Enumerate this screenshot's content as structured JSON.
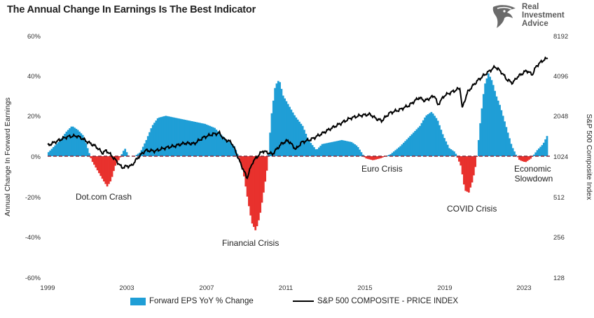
{
  "title": "The Annual Change In Earnings Is The Best Indicator",
  "logo": {
    "lines": [
      "Real",
      "Investment",
      "Advice"
    ],
    "icon": "eagle-head-icon"
  },
  "colors": {
    "bars_positive": "#1f9ed6",
    "bars_negative": "#e8312d",
    "line": "#000000",
    "zero_line": "#8a2a3a"
  },
  "chart_data": {
    "type": "bar",
    "title": "The Annual Change In Earnings Is The Best Indicator",
    "xlabel": "",
    "ylabel": "Annual Change In Forward Earnings",
    "y2label": "S&P 500 Composite Index",
    "xlim": [
      1999,
      2024.8
    ],
    "ylim": [
      -60,
      60
    ],
    "y2scale": "log2",
    "y2lim": [
      128,
      8192
    ],
    "x_ticks": [
      "1999",
      "2003",
      "2007",
      "2011",
      "2015",
      "2019",
      "2023"
    ],
    "y_ticks": [
      "60%",
      "40%",
      "20%",
      "0%",
      "-20%",
      "-40%",
      "-60%"
    ],
    "y2_ticks": [
      "8192",
      "4096",
      "2048",
      "1024",
      "512",
      "256",
      "128"
    ],
    "grid": false,
    "legend_position": "bottom",
    "annotations": [
      "Dot.com Crash",
      "Financial Crisis",
      "Euro Crisis",
      "COVID Crisis",
      "Economic Slowdown"
    ],
    "series": [
      {
        "name": "Forward EPS YoY % Change",
        "kind": "bar",
        "points": [
          [
            1999.0,
            2
          ],
          [
            1999.3,
            5
          ],
          [
            1999.6,
            8
          ],
          [
            1999.9,
            12
          ],
          [
            2000.2,
            15
          ],
          [
            2000.5,
            13
          ],
          [
            2000.8,
            10
          ],
          [
            2001.0,
            4
          ],
          [
            2001.2,
            -2
          ],
          [
            2001.5,
            -7
          ],
          [
            2001.8,
            -12
          ],
          [
            2002.0,
            -15
          ],
          [
            2002.2,
            -12
          ],
          [
            2002.4,
            -5
          ],
          [
            2002.7,
            0
          ],
          [
            2002.9,
            4
          ],
          [
            2003.1,
            0
          ],
          [
            2003.4,
            0
          ],
          [
            2003.7,
            2
          ],
          [
            2004.0,
            8
          ],
          [
            2004.3,
            15
          ],
          [
            2004.6,
            19
          ],
          [
            2005.0,
            20
          ],
          [
            2005.5,
            19
          ],
          [
            2006.0,
            18
          ],
          [
            2006.5,
            17
          ],
          [
            2007.0,
            16
          ],
          [
            2007.5,
            14
          ],
          [
            2008.0,
            9
          ],
          [
            2008.5,
            5
          ],
          [
            2008.8,
            -2
          ],
          [
            2009.0,
            -10
          ],
          [
            2009.2,
            -22
          ],
          [
            2009.4,
            -33
          ],
          [
            2009.6,
            -37
          ],
          [
            2009.8,
            -30
          ],
          [
            2010.0,
            -18
          ],
          [
            2010.2,
            -5
          ],
          [
            2010.4,
            20
          ],
          [
            2010.6,
            35
          ],
          [
            2010.8,
            38
          ],
          [
            2011.0,
            30
          ],
          [
            2011.3,
            25
          ],
          [
            2011.6,
            20
          ],
          [
            2012.0,
            15
          ],
          [
            2012.3,
            8
          ],
          [
            2012.7,
            3
          ],
          [
            2013.0,
            6
          ],
          [
            2013.5,
            7
          ],
          [
            2014.0,
            8
          ],
          [
            2014.5,
            7
          ],
          [
            2014.8,
            5
          ],
          [
            2015.2,
            -1
          ],
          [
            2015.6,
            -2
          ],
          [
            2016.0,
            -1
          ],
          [
            2016.5,
            1
          ],
          [
            2017.0,
            5
          ],
          [
            2017.5,
            10
          ],
          [
            2018.0,
            15
          ],
          [
            2018.3,
            20
          ],
          [
            2018.6,
            22
          ],
          [
            2018.9,
            18
          ],
          [
            2019.2,
            10
          ],
          [
            2019.5,
            4
          ],
          [
            2019.8,
            2
          ],
          [
            2020.1,
            -5
          ],
          [
            2020.3,
            -17
          ],
          [
            2020.5,
            -18
          ],
          [
            2020.7,
            -12
          ],
          [
            2020.9,
            -2
          ],
          [
            2021.1,
            18
          ],
          [
            2021.3,
            35
          ],
          [
            2021.5,
            41
          ],
          [
            2021.7,
            37
          ],
          [
            2021.9,
            30
          ],
          [
            2022.1,
            25
          ],
          [
            2022.4,
            15
          ],
          [
            2022.7,
            5
          ],
          [
            2022.9,
            1
          ],
          [
            2023.1,
            -2
          ],
          [
            2023.4,
            -3
          ],
          [
            2023.7,
            -1
          ],
          [
            2024.0,
            3
          ],
          [
            2024.3,
            6
          ],
          [
            2024.5,
            10
          ]
        ]
      },
      {
        "name": "S&P 500 COMPOSITE - PRICE INDEX",
        "kind": "line",
        "axis": "right",
        "points": [
          [
            1999.0,
            1230
          ],
          [
            1999.5,
            1330
          ],
          [
            2000.0,
            1430
          ],
          [
            2000.5,
            1450
          ],
          [
            2000.8,
            1380
          ],
          [
            2001.0,
            1320
          ],
          [
            2001.5,
            1200
          ],
          [
            2001.8,
            1080
          ],
          [
            2002.0,
            1130
          ],
          [
            2002.5,
            950
          ],
          [
            2002.8,
            840
          ],
          [
            2003.0,
            860
          ],
          [
            2003.3,
            870
          ],
          [
            2003.6,
            990
          ],
          [
            2004.0,
            1130
          ],
          [
            2004.5,
            1120
          ],
          [
            2005.0,
            1180
          ],
          [
            2005.5,
            1220
          ],
          [
            2006.0,
            1280
          ],
          [
            2006.5,
            1270
          ],
          [
            2007.0,
            1420
          ],
          [
            2007.5,
            1500
          ],
          [
            2007.8,
            1520
          ],
          [
            2008.0,
            1380
          ],
          [
            2008.4,
            1300
          ],
          [
            2008.8,
            950
          ],
          [
            2009.0,
            820
          ],
          [
            2009.2,
            700
          ],
          [
            2009.5,
            930
          ],
          [
            2010.0,
            1120
          ],
          [
            2010.5,
            1060
          ],
          [
            2011.0,
            1280
          ],
          [
            2011.3,
            1340
          ],
          [
            2011.7,
            1150
          ],
          [
            2012.0,
            1300
          ],
          [
            2012.5,
            1370
          ],
          [
            2013.0,
            1500
          ],
          [
            2013.5,
            1650
          ],
          [
            2014.0,
            1800
          ],
          [
            2014.5,
            1970
          ],
          [
            2015.0,
            2060
          ],
          [
            2015.5,
            2100
          ],
          [
            2015.8,
            1950
          ],
          [
            2016.1,
            1880
          ],
          [
            2016.5,
            2150
          ],
          [
            2017.0,
            2270
          ],
          [
            2017.5,
            2450
          ],
          [
            2018.0,
            2800
          ],
          [
            2018.3,
            2650
          ],
          [
            2018.8,
            2900
          ],
          [
            2018.95,
            2450
          ],
          [
            2019.3,
            2900
          ],
          [
            2019.8,
            3140
          ],
          [
            2020.1,
            3300
          ],
          [
            2020.2,
            2300
          ],
          [
            2020.5,
            3100
          ],
          [
            2021.0,
            3750
          ],
          [
            2021.5,
            4300
          ],
          [
            2021.9,
            4750
          ],
          [
            2022.2,
            4350
          ],
          [
            2022.5,
            3800
          ],
          [
            2022.8,
            3600
          ],
          [
            2023.0,
            3950
          ],
          [
            2023.5,
            4450
          ],
          [
            2023.8,
            4150
          ],
          [
            2024.0,
            4800
          ],
          [
            2024.3,
            5250
          ],
          [
            2024.6,
            5550
          ]
        ]
      }
    ]
  },
  "legend": [
    {
      "label": "Forward EPS YoY % Change"
    },
    {
      "label": "S&P 500 COMPOSITE - PRICE INDEX"
    }
  ]
}
